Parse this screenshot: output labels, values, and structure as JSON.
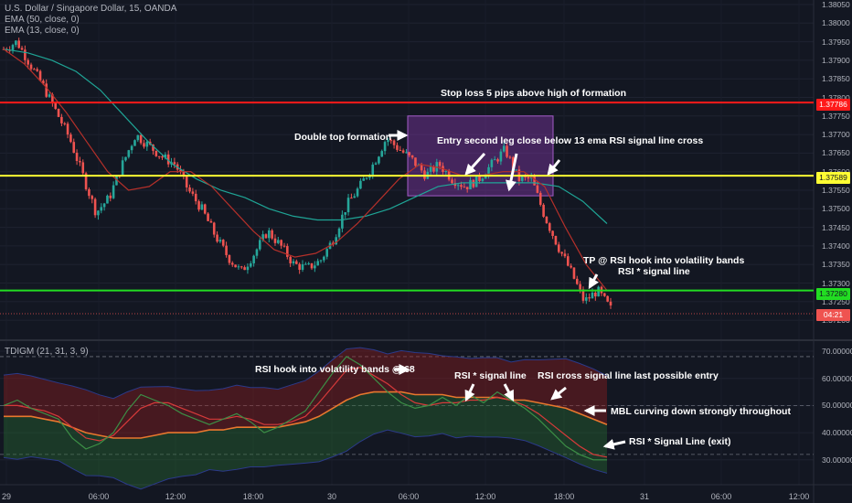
{
  "header": {
    "symbol": "U.S. Dollar / Singapore Dollar, 15, OANDA",
    "ema50": "EMA (50, close, 0)",
    "ema13": "EMA (13, close, 0)",
    "indicator": "TDIGM (21, 31, 3, 9)"
  },
  "colors": {
    "background": "#131722",
    "up": "#26a69a",
    "down": "#ef5350",
    "stop": "#ff1a1a",
    "entry": "#ffff33",
    "tp": "#22dd22",
    "ema13": "#b5302a",
    "ema50": "#1fa596"
  },
  "tags": {
    "stop": "1.37786",
    "entry": "1.37589",
    "tp": "1.37280",
    "timer": "04:21"
  },
  "annotations": {
    "stop_loss": "Stop loss 5 pips above high of formation",
    "double_top": "Double top formation",
    "entry": "Entry second leg close below 13 ema RSI signal line cross",
    "tp_line1": "TP @ RSI hook into volatility bands",
    "tp_line2": "RSI * signal line",
    "rsi_hook": "RSI hook into volatility bands @ 68",
    "rsi_signal": "RSI * signal line",
    "rsi_cross": "RSI cross signal line last possible entry",
    "mbl": "MBL curving down strongly throughout",
    "rsi_exit": "RSI * Signal Line (exit)"
  },
  "chart_data": [
    {
      "type": "candlestick",
      "title": "U.S. Dollar / Singapore Dollar, 15, OANDA",
      "ylim": [
        1.3718,
        1.3807
      ],
      "yticks": [
        "1.38050",
        "1.38000",
        "1.37950",
        "1.37900",
        "1.37850",
        "1.37800",
        "1.37750",
        "1.37700",
        "1.37650",
        "1.37600",
        "1.37550",
        "1.37500",
        "1.37450",
        "1.37400",
        "1.37350",
        "1.37300",
        "1.37250",
        "1.37200"
      ],
      "xticks": [
        "29",
        "06:00",
        "12:00",
        "18:00",
        "30",
        "06:00",
        "12:00",
        "18:00",
        "31",
        "06:00",
        "12:00"
      ],
      "levels": [
        {
          "name": "Stop loss",
          "value": 1.37786
        },
        {
          "name": "Entry",
          "value": 1.37589
        },
        {
          "name": "TP",
          "value": 1.3728
        }
      ],
      "close_path": [
        1.3793,
        1.3795,
        1.3789,
        1.3783,
        1.3776,
        1.3769,
        1.3759,
        1.3749,
        1.3753,
        1.3762,
        1.377,
        1.3767,
        1.3764,
        1.3762,
        1.3755,
        1.375,
        1.3743,
        1.3737,
        1.3733,
        1.3738,
        1.3744,
        1.374,
        1.3735,
        1.3734,
        1.3736,
        1.3742,
        1.3751,
        1.3756,
        1.3762,
        1.3769,
        1.3766,
        1.3763,
        1.3759,
        1.3762,
        1.3758,
        1.3756,
        1.3758,
        1.3762,
        1.3766,
        1.3758,
        1.3758,
        1.3748,
        1.374,
        1.3733,
        1.3725,
        1.3728,
        1.3723
      ],
      "ema50": [
        1.3793,
        1.3792,
        1.379,
        1.3787,
        1.3782,
        1.3775,
        1.3768,
        1.3762,
        1.3758,
        1.3755,
        1.3753,
        1.375,
        1.3748,
        1.3747,
        1.3747,
        1.3748,
        1.375,
        1.3753,
        1.3756,
        1.3757,
        1.3757,
        1.3757,
        1.3757,
        1.3756,
        1.3752,
        1.3746
      ],
      "ema13": [
        1.3793,
        1.3789,
        1.3783,
        1.3776,
        1.3768,
        1.376,
        1.3755,
        1.3756,
        1.376,
        1.376,
        1.3756,
        1.375,
        1.3744,
        1.3739,
        1.3737,
        1.3738,
        1.3741,
        1.3746,
        1.3752,
        1.3758,
        1.3762,
        1.3761,
        1.3759,
        1.3759,
        1.376,
        1.376,
        1.3756,
        1.3745,
        1.3735,
        1.3728
      ],
      "formation_box": {
        "price_top": 1.3775,
        "price_bottom": 1.37535
      }
    },
    {
      "type": "line",
      "title": "TDIGM (21, 31, 3, 9)",
      "ylim": [
        28.0,
        72.0
      ],
      "yticks": [
        "70.00000",
        "60.00000",
        "50.00000",
        "40.00000",
        "30.00000"
      ],
      "reference_lines": [
        68,
        50,
        32
      ],
      "series": [
        {
          "name": "RSI",
          "values": [
            50,
            52,
            49,
            47,
            45,
            38,
            34,
            36,
            40,
            48,
            54,
            52,
            50,
            47,
            45,
            43,
            45,
            47,
            44,
            40,
            42,
            45,
            48,
            55,
            62,
            68,
            65,
            60,
            55,
            51,
            49,
            50,
            53,
            50,
            54,
            51,
            55,
            52,
            49,
            45,
            40,
            35,
            32,
            30,
            30
          ]
        },
        {
          "name": "signal line",
          "values": [
            50,
            50,
            49,
            48,
            46,
            42,
            38,
            37,
            39,
            44,
            49,
            51,
            51,
            49,
            47,
            45,
            45,
            46,
            45,
            43,
            43,
            44,
            46,
            51,
            57,
            63,
            64,
            61,
            58,
            54,
            51,
            50,
            51,
            51,
            52,
            52,
            53,
            52,
            50,
            47,
            43,
            39,
            35,
            32,
            31
          ]
        },
        {
          "name": "MBL",
          "values": [
            46,
            46,
            46,
            45,
            44,
            42,
            40,
            39,
            38,
            38,
            38,
            39,
            40,
            40,
            40,
            41,
            41,
            42,
            42,
            42,
            42,
            43,
            44,
            46,
            49,
            52,
            54,
            55,
            55,
            55,
            54,
            54,
            54,
            53,
            53,
            53,
            53,
            52,
            52,
            51,
            50,
            49,
            47,
            45,
            43
          ]
        }
      ]
    }
  ]
}
